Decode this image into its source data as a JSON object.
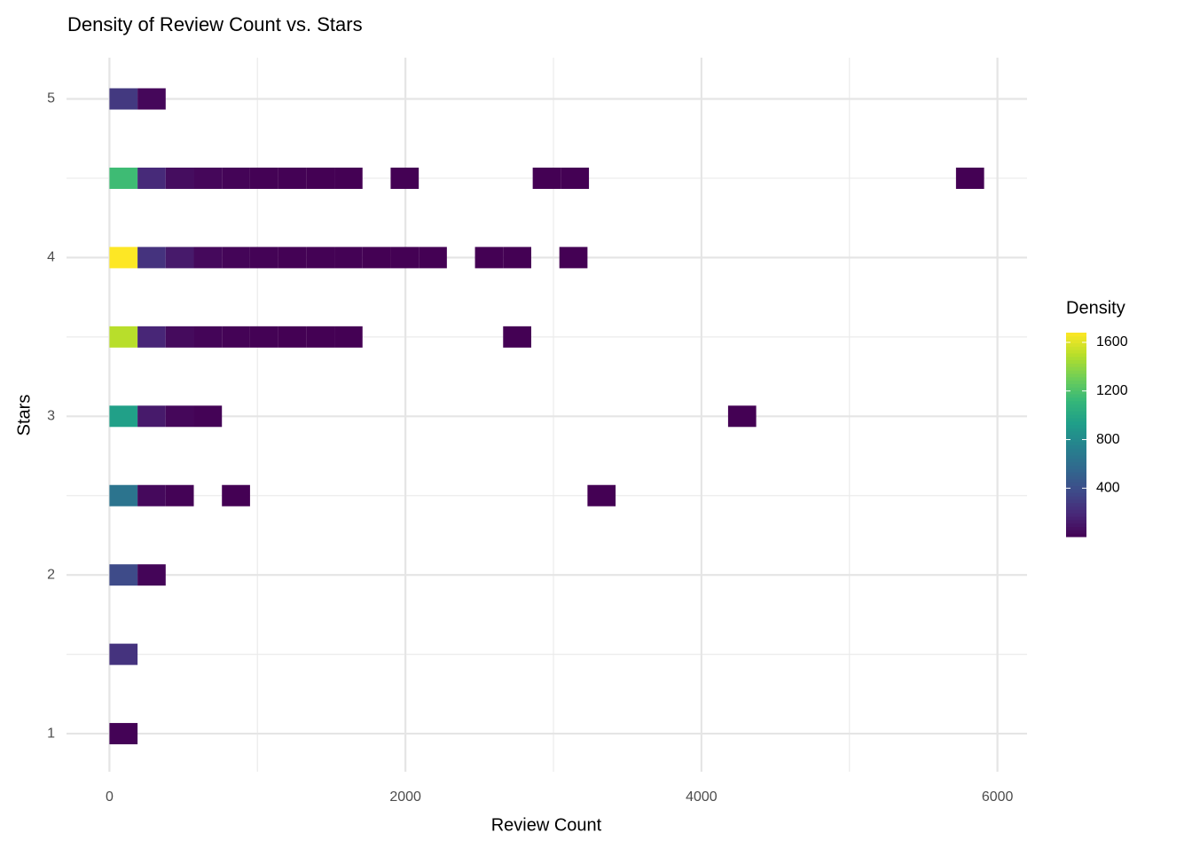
{
  "chart_data": {
    "type": "bin2d",
    "title": "Density of Review Count vs. Stars",
    "x_label": "Review Count",
    "y_label": "Stars",
    "xlim": [
      -290,
      6200
    ],
    "xticks": [
      0,
      2000,
      4000,
      6000
    ],
    "xminor": [
      1000,
      3000,
      5000
    ],
    "ylim": [
      0.76,
      5.26
    ],
    "yticks": [
      1,
      2,
      3,
      4,
      5
    ],
    "yminor": [
      1.5,
      2.5,
      3.5,
      4.5
    ],
    "grid": true,
    "legend": {
      "title": "Density",
      "colorlim": [
        1,
        1680
      ],
      "ticks": [
        400,
        800,
        1200,
        1600
      ],
      "position": "right"
    },
    "tiles": [
      {
        "xmin": 0,
        "xmax": 190,
        "y": 5,
        "value": 280
      },
      {
        "xmin": 190,
        "xmax": 380,
        "y": 5,
        "value": 30
      },
      {
        "xmin": 0,
        "xmax": 190,
        "y": 4.5,
        "value": 1150
      },
      {
        "xmin": 190,
        "xmax": 380,
        "y": 4.5,
        "value": 200
      },
      {
        "xmin": 380,
        "xmax": 570,
        "y": 4.5,
        "value": 60
      },
      {
        "xmin": 570,
        "xmax": 760,
        "y": 4.5,
        "value": 30
      },
      {
        "xmin": 760,
        "xmax": 950,
        "y": 4.5,
        "value": 15
      },
      {
        "xmin": 950,
        "xmax": 1140,
        "y": 4.5,
        "value": 8
      },
      {
        "xmin": 1140,
        "xmax": 1330,
        "y": 4.5,
        "value": 5
      },
      {
        "xmin": 1330,
        "xmax": 1520,
        "y": 4.5,
        "value": 3
      },
      {
        "xmin": 1520,
        "xmax": 1710,
        "y": 4.5,
        "value": 2
      },
      {
        "xmin": 1900,
        "xmax": 2090,
        "y": 4.5,
        "value": 1
      },
      {
        "xmin": 2860,
        "xmax": 3050,
        "y": 4.5,
        "value": 1
      },
      {
        "xmin": 3050,
        "xmax": 3240,
        "y": 4.5,
        "value": 1
      },
      {
        "xmin": 5720,
        "xmax": 5910,
        "y": 4.5,
        "value": 1
      },
      {
        "xmin": 0,
        "xmax": 190,
        "y": 4,
        "value": 1680
      },
      {
        "xmin": 190,
        "xmax": 380,
        "y": 4,
        "value": 250
      },
      {
        "xmin": 380,
        "xmax": 570,
        "y": 4,
        "value": 120
      },
      {
        "xmin": 570,
        "xmax": 760,
        "y": 4,
        "value": 40
      },
      {
        "xmin": 760,
        "xmax": 950,
        "y": 4,
        "value": 20
      },
      {
        "xmin": 950,
        "xmax": 1140,
        "y": 4,
        "value": 12
      },
      {
        "xmin": 1140,
        "xmax": 1330,
        "y": 4,
        "value": 8
      },
      {
        "xmin": 1330,
        "xmax": 1520,
        "y": 4,
        "value": 5
      },
      {
        "xmin": 1520,
        "xmax": 1710,
        "y": 4,
        "value": 4
      },
      {
        "xmin": 1710,
        "xmax": 1900,
        "y": 4,
        "value": 3
      },
      {
        "xmin": 1900,
        "xmax": 2090,
        "y": 4,
        "value": 2
      },
      {
        "xmin": 2090,
        "xmax": 2280,
        "y": 4,
        "value": 1
      },
      {
        "xmin": 2470,
        "xmax": 2660,
        "y": 4,
        "value": 1
      },
      {
        "xmin": 2660,
        "xmax": 2850,
        "y": 4,
        "value": 1
      },
      {
        "xmin": 3040,
        "xmax": 3230,
        "y": 4,
        "value": 1
      },
      {
        "xmin": 0,
        "xmax": 190,
        "y": 3.5,
        "value": 1500
      },
      {
        "xmin": 190,
        "xmax": 380,
        "y": 3.5,
        "value": 180
      },
      {
        "xmin": 380,
        "xmax": 570,
        "y": 3.5,
        "value": 50
      },
      {
        "xmin": 570,
        "xmax": 760,
        "y": 3.5,
        "value": 20
      },
      {
        "xmin": 760,
        "xmax": 950,
        "y": 3.5,
        "value": 10
      },
      {
        "xmin": 950,
        "xmax": 1140,
        "y": 3.5,
        "value": 6
      },
      {
        "xmin": 1140,
        "xmax": 1330,
        "y": 3.5,
        "value": 3
      },
      {
        "xmin": 1330,
        "xmax": 1520,
        "y": 3.5,
        "value": 2
      },
      {
        "xmin": 1520,
        "xmax": 1710,
        "y": 3.5,
        "value": 1
      },
      {
        "xmin": 2660,
        "xmax": 2850,
        "y": 3.5,
        "value": 1
      },
      {
        "xmin": 0,
        "xmax": 190,
        "y": 3,
        "value": 950
      },
      {
        "xmin": 190,
        "xmax": 380,
        "y": 3,
        "value": 120
      },
      {
        "xmin": 380,
        "xmax": 570,
        "y": 3,
        "value": 30
      },
      {
        "xmin": 570,
        "xmax": 760,
        "y": 3,
        "value": 10
      },
      {
        "xmin": 4180,
        "xmax": 4370,
        "y": 3,
        "value": 1
      },
      {
        "xmin": 0,
        "xmax": 190,
        "y": 2.5,
        "value": 650
      },
      {
        "xmin": 190,
        "xmax": 380,
        "y": 2.5,
        "value": 40
      },
      {
        "xmin": 380,
        "xmax": 570,
        "y": 2.5,
        "value": 10
      },
      {
        "xmin": 760,
        "xmax": 950,
        "y": 2.5,
        "value": 2
      },
      {
        "xmin": 3230,
        "xmax": 3420,
        "y": 2.5,
        "value": 1
      },
      {
        "xmin": 0,
        "xmax": 190,
        "y": 2,
        "value": 380
      },
      {
        "xmin": 190,
        "xmax": 380,
        "y": 2,
        "value": 20
      },
      {
        "xmin": 0,
        "xmax": 190,
        "y": 1.5,
        "value": 250
      },
      {
        "xmin": 0,
        "xmax": 190,
        "y": 1,
        "value": 10
      }
    ]
  }
}
